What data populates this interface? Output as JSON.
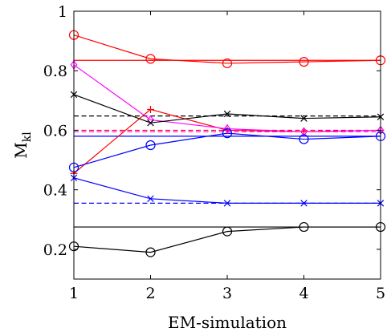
{
  "chart_data": {
    "type": "line",
    "xlabel": "EM-simulation",
    "ylabel": "M",
    "ylabel_sub": "kl",
    "x": [
      1,
      2,
      3,
      4,
      5
    ],
    "xlim": [
      1,
      5
    ],
    "ylim": [
      0.1,
      1.0
    ],
    "xticks": [
      "1",
      "2",
      "3",
      "4",
      "5"
    ],
    "yticks": [
      {
        "v": 0.2,
        "label": "0.2"
      },
      {
        "v": 0.4,
        "label": "0.4"
      },
      {
        "v": 0.6,
        "label": "0.6"
      },
      {
        "v": 0.8,
        "label": "0.8"
      },
      {
        "v": 1.0,
        "label": "1"
      }
    ],
    "grid": false,
    "series": [
      {
        "color": "#ff0000",
        "marker": "circle",
        "values": [
          0.92,
          0.84,
          0.825,
          0.83,
          0.835
        ]
      },
      {
        "color": "#ff0000",
        "marker": "plus",
        "values": [
          0.455,
          0.67,
          0.6,
          0.595,
          0.6
        ]
      },
      {
        "color": "#ff00ff",
        "marker": "diamond",
        "values": [
          0.82,
          0.635,
          0.605,
          0.595,
          0.6
        ]
      },
      {
        "color": "#000000",
        "marker": "x",
        "values": [
          0.72,
          0.625,
          0.655,
          0.64,
          0.645
        ]
      },
      {
        "color": "#0000ff",
        "marker": "circle",
        "values": [
          0.475,
          0.55,
          0.59,
          0.57,
          0.58
        ]
      },
      {
        "color": "#0000ff",
        "marker": "x",
        "values": [
          0.44,
          0.37,
          0.355,
          0.355,
          0.355
        ]
      },
      {
        "color": "#000000",
        "marker": "circle",
        "values": [
          0.21,
          0.19,
          0.26,
          0.275,
          0.275
        ]
      }
    ],
    "reference_lines": [
      {
        "color": "#ff0000",
        "dash": "solid",
        "y": 0.835
      },
      {
        "color": "#ff0000",
        "dash": "dashed",
        "y": 0.6
      },
      {
        "color": "#ff00ff",
        "dash": "dashed",
        "y": 0.595
      },
      {
        "color": "#000000",
        "dash": "dashed",
        "y": 0.648
      },
      {
        "color": "#0000ff",
        "dash": "solid",
        "y": 0.58
      },
      {
        "color": "#0000ff",
        "dash": "dashed",
        "y": 0.355
      },
      {
        "color": "#000000",
        "dash": "solid",
        "y": 0.275
      }
    ]
  }
}
